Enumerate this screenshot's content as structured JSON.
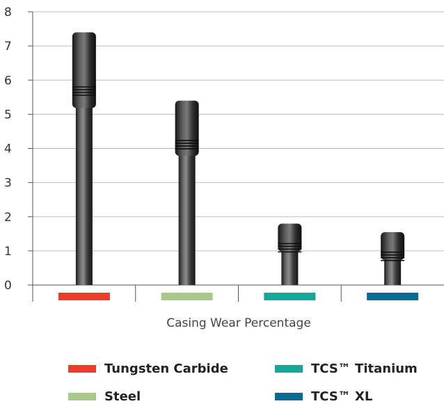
{
  "chart_data": {
    "type": "bar",
    "xlabel": "Casing Wear Percentage",
    "ylabel": "",
    "ylim": [
      0,
      8
    ],
    "yticks": [
      0,
      1,
      2,
      3,
      4,
      5,
      6,
      7,
      8
    ],
    "grid": "horizontal",
    "legend_position": "bottom",
    "bar_style": "tool-joint pipe images",
    "categories": [
      "Tungsten Carbide",
      "Steel",
      "TCS™ Titanium",
      "TCS™ XL"
    ],
    "values": [
      7.4,
      5.4,
      1.8,
      1.55
    ],
    "colors": [
      "#ef3b2c",
      "#a8c98a",
      "#12a89a",
      "#0a6b94"
    ]
  },
  "legend": {
    "items": [
      {
        "label": "Tungsten Carbide",
        "color": "#ef3b2c"
      },
      {
        "label": "TCS™ Titanium",
        "color": "#12a89a"
      },
      {
        "label": "Steel",
        "color": "#a8c98a"
      },
      {
        "label": "TCS™ XL",
        "color": "#0a6b94"
      }
    ]
  }
}
